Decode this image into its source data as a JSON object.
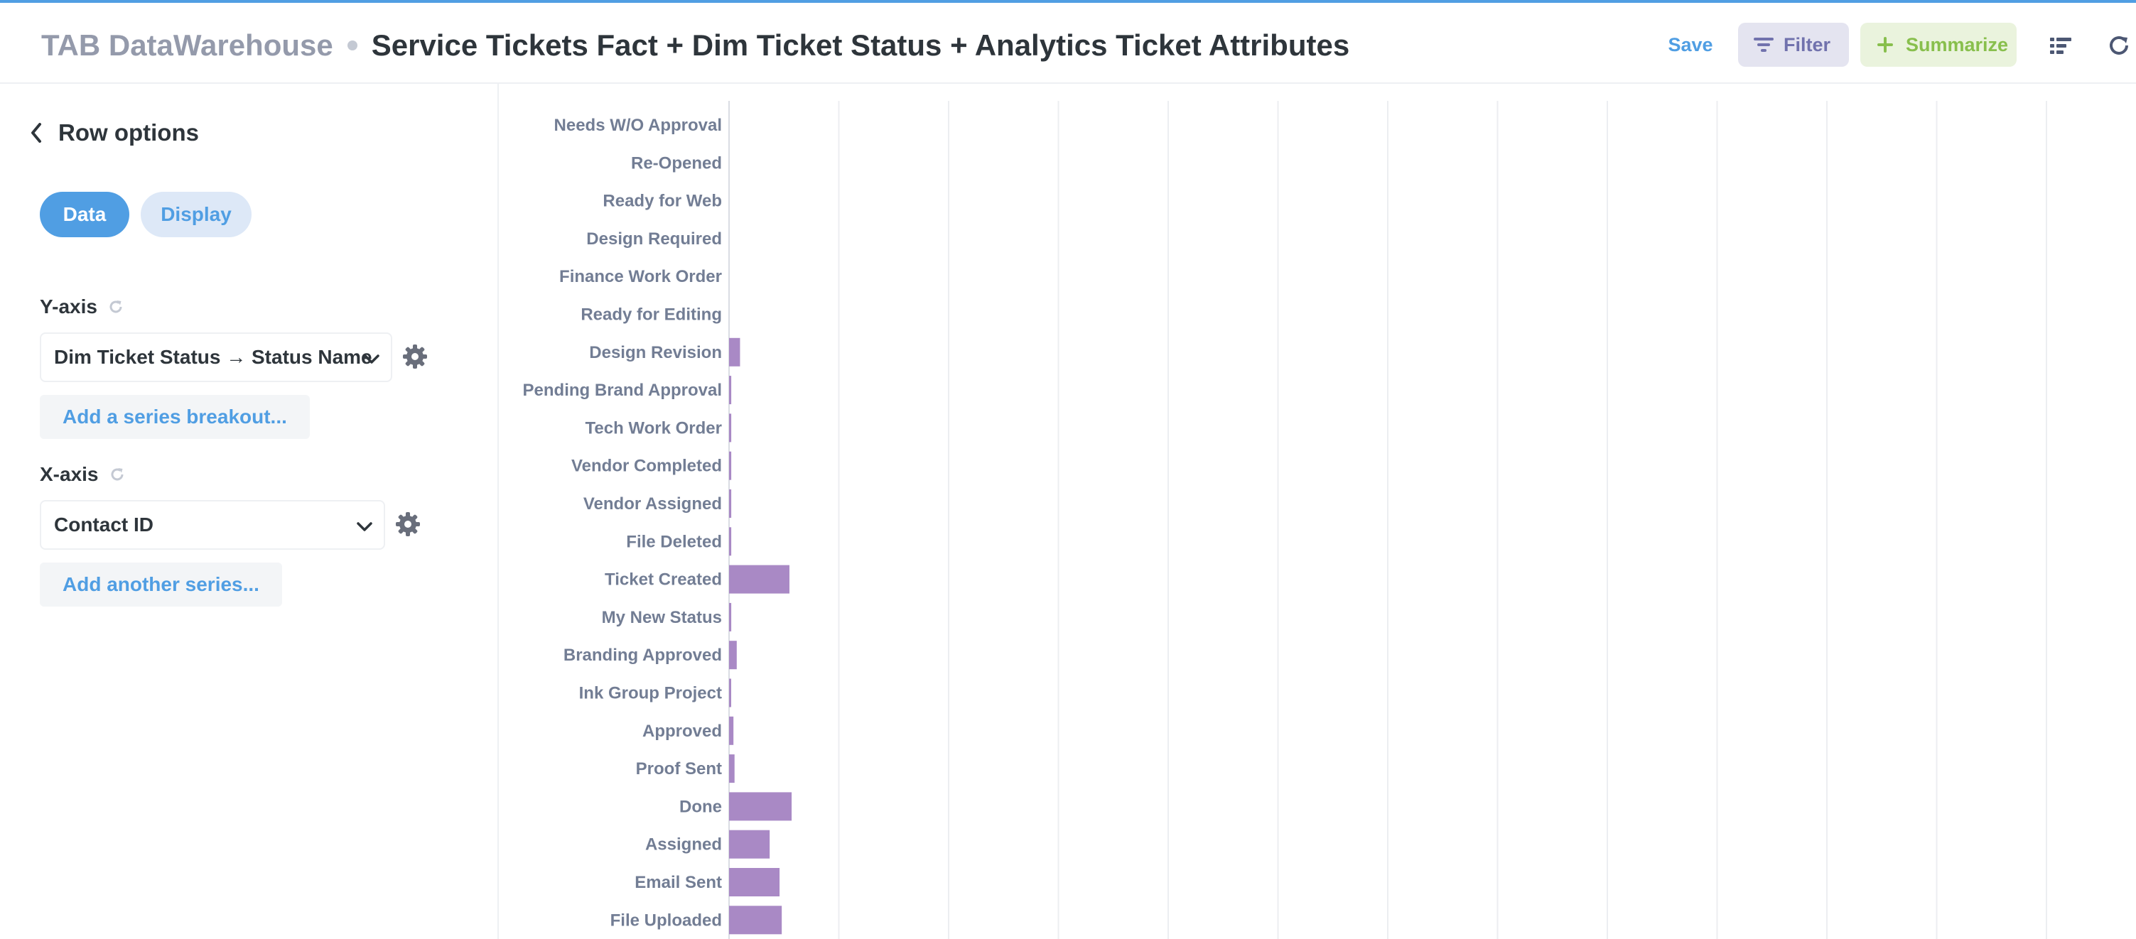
{
  "header": {
    "database": "TAB DataWarehouse",
    "title": "Service Tickets Fact + Dim Ticket Status + Analytics Ticket Attributes",
    "save_label": "Save",
    "filter_label": "Filter",
    "summarize_label": "Summarize",
    "icons": [
      "filter-icon",
      "plus-icon",
      "list-icon",
      "refresh-icon"
    ]
  },
  "sidebar": {
    "back_label": "Row options",
    "tabs": {
      "data": "Data",
      "display": "Display"
    },
    "y_axis": {
      "label": "Y-axis",
      "value": "Dim Ticket Status → Status Name",
      "add_link": "Add a series breakout..."
    },
    "x_axis": {
      "label": "X-axis",
      "value": "Contact ID",
      "add_link": "Add another series..."
    }
  },
  "colors": {
    "accent": "#509ee3",
    "bar": "#a989c5",
    "filter": "#7172ad",
    "summarize": "#88bf4d"
  },
  "chart_data": {
    "type": "bar",
    "orientation": "horizontal",
    "categories": [
      "Needs W/O Approval",
      "Re-Opened",
      "Ready for Web",
      "Design Required",
      "Finance Work Order",
      "Ready for Editing",
      "Design Revision",
      "Pending Brand Approval",
      "Tech Work Order",
      "Vendor Completed",
      "Vendor Assigned",
      "File Deleted",
      "Ticket Created",
      "My New Status",
      "Branding Approved",
      "Ink Group Project",
      "Approved",
      "Proof Sent",
      "Done",
      "Assigned",
      "Email Sent",
      "File Uploaded"
    ],
    "values": [
      0,
      0,
      0,
      0,
      0,
      0,
      0.1,
      0.02,
      0.02,
      0.02,
      0.02,
      0.02,
      0.55,
      0.02,
      0.07,
      0.01,
      0.04,
      0.05,
      0.57,
      0.37,
      0.46,
      0.48
    ],
    "xlim": [
      0,
      12
    ],
    "grid": true,
    "bar_color": "#a989c5"
  }
}
